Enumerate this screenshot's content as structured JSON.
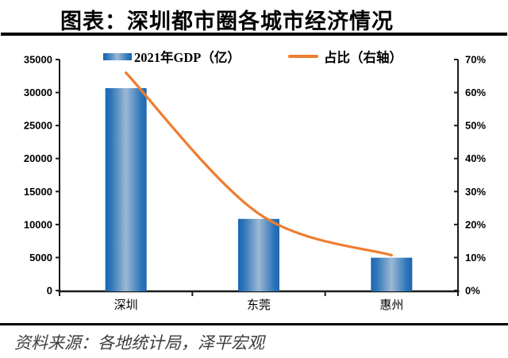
{
  "title": "图表：深圳都市圈各城市经济情况",
  "source_note": "资料来源：各地统计局，泽平宏观",
  "legend": {
    "gdp_label": "2021年GDP（亿）",
    "share_label": "占比（右轴）"
  },
  "colors": {
    "bar_edge": "#1b67af",
    "bar_mid": "#2e76ba",
    "bar_center": "#9cb8d4",
    "line": "#ED7D31",
    "axis": "#1a1a1a",
    "rule": "#000000",
    "text": "#000000",
    "source_text": "#3d3d3d"
  },
  "chart_data": {
    "type": "bar",
    "subtype": "bar+line combo, dual axis",
    "title": "图表：深圳都市圈各城市经济情况",
    "categories": [
      "深圳",
      "东莞",
      "惠州"
    ],
    "series": [
      {
        "name": "2021年GDP（亿）",
        "type": "bar",
        "axis": "left",
        "values": [
          30665,
          10855,
          4977
        ]
      },
      {
        "name": "占比（右轴）",
        "type": "line",
        "axis": "right",
        "unit": "%",
        "values": [
          66.0,
          23.3,
          10.7
        ]
      }
    ],
    "left_axis": {
      "min": 0,
      "max": 35000,
      "step": 5000,
      "tick_labels": [
        "0",
        "5000",
        "10000",
        "15000",
        "20000",
        "25000",
        "30000",
        "35000"
      ]
    },
    "right_axis": {
      "min": 0,
      "max": 70,
      "step": 10,
      "tick_labels": [
        "0%",
        "10%",
        "20%",
        "30%",
        "40%",
        "50%",
        "60%",
        "70%"
      ]
    },
    "grid": false,
    "legend_position": "top",
    "line_smooth": true
  }
}
